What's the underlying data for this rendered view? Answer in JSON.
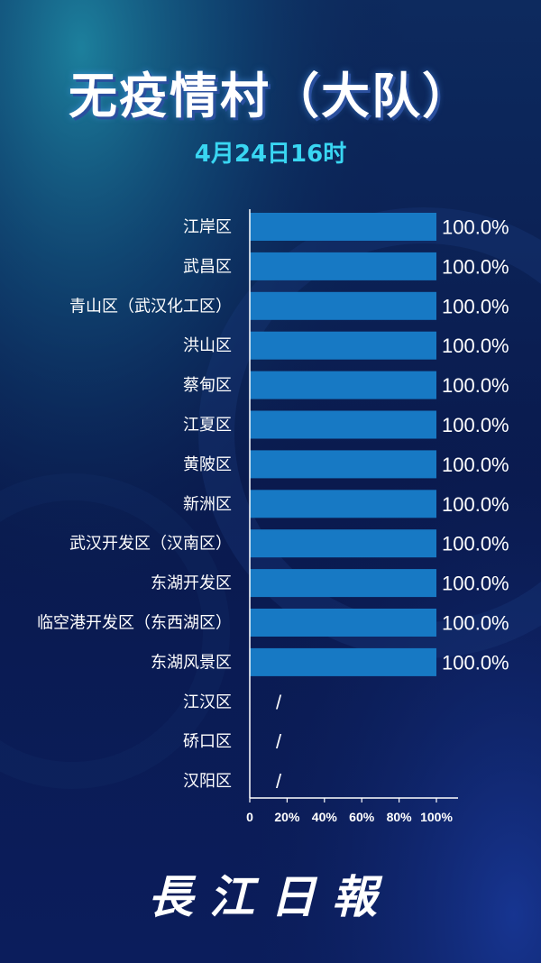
{
  "header": {
    "title": "无疫情村（大队）",
    "date": "4月24日16时"
  },
  "brand": {
    "logo_text": "長江日報"
  },
  "colors": {
    "bar": "#1779c4",
    "background": "#0a1a4a"
  },
  "chart_data": {
    "type": "bar",
    "orientation": "horizontal",
    "title": "无疫情村（大队）",
    "subtitle": "4月24日16时",
    "xlabel": "",
    "ylabel": "",
    "xlim": [
      0,
      100
    ],
    "x_ticks": [
      "0",
      "20%",
      "40%",
      "60%",
      "80%",
      "100%"
    ],
    "categories": [
      "江岸区",
      "武昌区",
      "青山区（武汉化工区）",
      "洪山区",
      "蔡甸区",
      "江夏区",
      "黄陂区",
      "新洲区",
      "武汉开发区（汉南区）",
      "东湖开发区",
      "临空港开发区（东西湖区）",
      "东湖风景区",
      "江汉区",
      "硚口区",
      "汉阳区"
    ],
    "values": [
      100,
      100,
      100,
      100,
      100,
      100,
      100,
      100,
      100,
      100,
      100,
      100,
      null,
      null,
      null
    ],
    "value_labels": [
      "100.0%",
      "100.0%",
      "100.0%",
      "100.0%",
      "100.0%",
      "100.0%",
      "100.0%",
      "100.0%",
      "100.0%",
      "100.0%",
      "100.0%",
      "100.0%",
      "/",
      "/",
      "/"
    ],
    "grid": false,
    "legend": "none"
  }
}
